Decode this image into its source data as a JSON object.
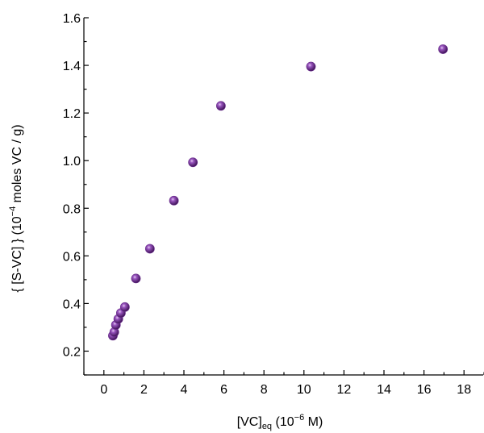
{
  "chart_data": {
    "type": "scatter",
    "title": "",
    "xlabel": {
      "prefix": "[VC]",
      "subscript": "eq",
      "middle": " (10",
      "superscript": "−6",
      "suffix": " M)"
    },
    "ylabel": {
      "prefix": "{ [S-VC] } (10",
      "superscript": "−4",
      "suffix": " moles VC / g)"
    },
    "xlim": [
      -1,
      19
    ],
    "ylim": [
      0.1,
      1.6
    ],
    "xticks": [
      0,
      2,
      4,
      6,
      8,
      10,
      12,
      14,
      16,
      18
    ],
    "xtick_labels": [
      "0",
      "2",
      "4",
      "6",
      "8",
      "10",
      "12",
      "14",
      "16",
      "18"
    ],
    "yticks": [
      0.2,
      0.4,
      0.6,
      0.8,
      1.0,
      1.2,
      1.4,
      1.6
    ],
    "ytick_labels": [
      "0.2",
      "0.4",
      "0.6",
      "0.8",
      "1.0",
      "1.2",
      "1.4",
      "1.6"
    ],
    "grid": false,
    "marker_color": "#6a2c8e",
    "points": [
      {
        "x": 0.45,
        "y": 0.265
      },
      {
        "x": 0.52,
        "y": 0.28
      },
      {
        "x": 0.6,
        "y": 0.31
      },
      {
        "x": 0.72,
        "y": 0.335
      },
      {
        "x": 0.85,
        "y": 0.36
      },
      {
        "x": 1.05,
        "y": 0.385
      },
      {
        "x": 1.6,
        "y": 0.505
      },
      {
        "x": 2.3,
        "y": 0.63
      },
      {
        "x": 3.5,
        "y": 0.832
      },
      {
        "x": 4.45,
        "y": 0.993
      },
      {
        "x": 5.85,
        "y": 1.23
      },
      {
        "x": 10.35,
        "y": 1.395
      },
      {
        "x": 16.95,
        "y": 1.468
      }
    ]
  }
}
